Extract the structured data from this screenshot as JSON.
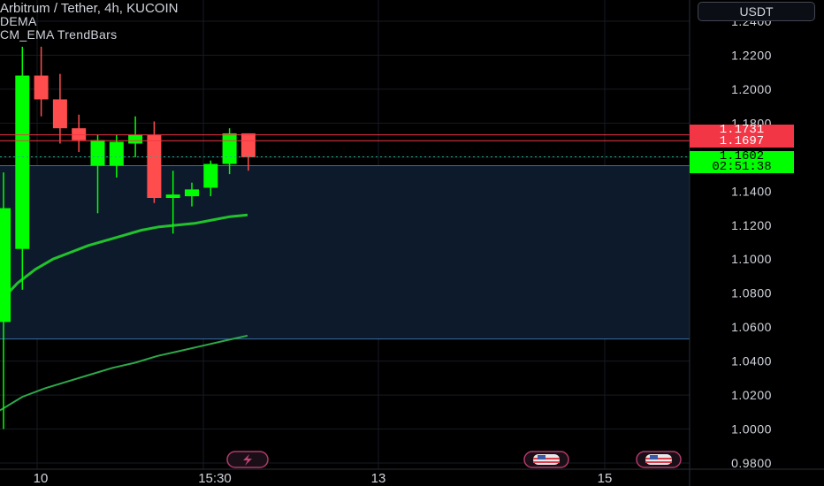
{
  "header": {
    "title": "Arbitrum / Tether, 4h, KUCOIN",
    "indicators": [
      "DEMA",
      "CM_EMA TrendBars"
    ],
    "currency_button": "USDT"
  },
  "price_labels": {
    "upper_red": "1.1731",
    "lower_red": "1.1697",
    "current_price": "1.1602",
    "countdown": "02:51:38"
  },
  "colors": {
    "up": "#00ff00",
    "down": "#ff4d4d",
    "ema_fast": "#22c22e",
    "ema_slow": "#2ea84a",
    "zone_fill": "#0d1a2b",
    "zone_line": "#3a6ea5",
    "red_line": "#f23645",
    "current_line": "#22ab94"
  },
  "icons": [
    "lightning-event-icon",
    "us-flag-event-icon",
    "us-flag-event-icon"
  ],
  "chart_data": {
    "type": "candlestick",
    "y_axis_ticks": [
      "1.2400",
      "1.2200",
      "1.2000",
      "1.1800",
      "1.1400",
      "1.1200",
      "1.1000",
      "1.0800",
      "1.0600",
      "1.0400",
      "1.0200",
      "1.0000",
      "0.9800"
    ],
    "ylim": [
      0.978,
      1.243
    ],
    "x_axis_ticks": [
      "10",
      "15:30",
      "13",
      "15"
    ],
    "candles": [
      {
        "o": 1.063,
        "h": 1.151,
        "l": 1.0,
        "c": 1.13
      },
      {
        "o": 1.106,
        "h": 1.225,
        "l": 1.082,
        "c": 1.208
      },
      {
        "o": 1.208,
        "h": 1.225,
        "l": 1.184,
        "c": 1.194
      },
      {
        "o": 1.194,
        "h": 1.209,
        "l": 1.168,
        "c": 1.177
      },
      {
        "o": 1.177,
        "h": 1.185,
        "l": 1.163,
        "c": 1.17
      },
      {
        "o": 1.155,
        "h": 1.173,
        "l": 1.127,
        "c": 1.17
      },
      {
        "o": 1.155,
        "h": 1.173,
        "l": 1.148,
        "c": 1.169
      },
      {
        "o": 1.168,
        "h": 1.184,
        "l": 1.16,
        "c": 1.173
      },
      {
        "o": 1.173,
        "h": 1.181,
        "l": 1.133,
        "c": 1.136
      },
      {
        "o": 1.136,
        "h": 1.152,
        "l": 1.115,
        "c": 1.138
      },
      {
        "o": 1.137,
        "h": 1.145,
        "l": 1.131,
        "c": 1.141
      },
      {
        "o": 1.142,
        "h": 1.158,
        "l": 1.137,
        "c": 1.156
      },
      {
        "o": 1.156,
        "h": 1.177,
        "l": 1.15,
        "c": 1.174
      },
      {
        "o": 1.174,
        "h": 1.174,
        "l": 1.152,
        "c": 1.16
      }
    ],
    "ema_fast": [
      1.075,
      1.086,
      1.094,
      1.1,
      1.104,
      1.108,
      1.111,
      1.114,
      1.117,
      1.119,
      1.12,
      1.121,
      1.123,
      1.125,
      1.126
    ],
    "ema_slow": [
      1.011,
      1.019,
      1.024,
      1.028,
      1.032,
      1.036,
      1.039,
      1.043,
      1.046,
      1.049,
      1.052,
      1.055
    ],
    "zone": {
      "top": 1.155,
      "bottom": 1.053
    },
    "red_lines": [
      1.1731,
      1.1697
    ],
    "current": 1.1602
  }
}
